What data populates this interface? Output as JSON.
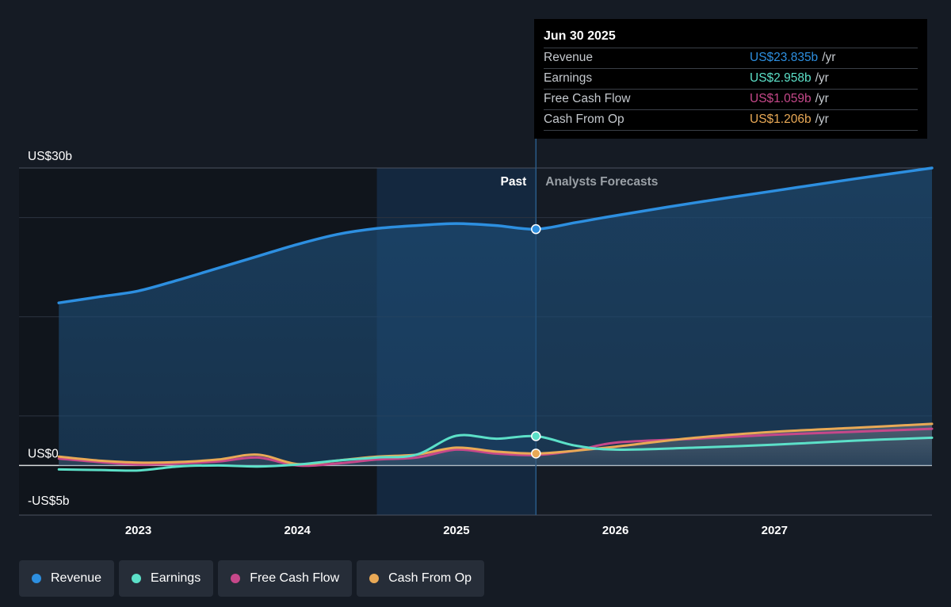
{
  "tooltip": {
    "date": "Jun 30 2025",
    "rows": [
      {
        "label": "Revenue",
        "value": "US$23.835b",
        "unit": "/yr",
        "color": "#2d8fe0"
      },
      {
        "label": "Earnings",
        "value": "US$2.958b",
        "unit": "/yr",
        "color": "#5ce0c8"
      },
      {
        "label": "Free Cash Flow",
        "value": "US$1.059b",
        "unit": "/yr",
        "color": "#c6488a"
      },
      {
        "label": "Cash From Op",
        "value": "US$1.206b",
        "unit": "/yr",
        "color": "#e9a956"
      }
    ]
  },
  "legend": [
    {
      "label": "Revenue",
      "color": "#2d8fe0"
    },
    {
      "label": "Earnings",
      "color": "#5ce0c8"
    },
    {
      "label": "Free Cash Flow",
      "color": "#c6488a"
    },
    {
      "label": "Cash From Op",
      "color": "#e9a956"
    }
  ],
  "chart_data": {
    "type": "line",
    "ylim": [
      -5,
      30
    ],
    "xlim": [
      2022.25,
      2027.99
    ],
    "y_tick_labels": [
      {
        "value": 30,
        "label": "US$30b"
      },
      {
        "value": 0,
        "label": "US$0"
      },
      {
        "value": -5,
        "label": "-US$5b"
      }
    ],
    "x_tick_labels": [
      {
        "value": 2023,
        "label": "2023"
      },
      {
        "value": 2024,
        "label": "2024"
      },
      {
        "value": 2025,
        "label": "2025"
      },
      {
        "value": 2026,
        "label": "2026"
      },
      {
        "value": 2027,
        "label": "2027"
      }
    ],
    "divider": {
      "x": 2025.5,
      "past_label": "Past",
      "forecast_label": "Analysts Forecasts"
    },
    "highlight_start": 2024.5,
    "grid": true,
    "series": [
      {
        "name": "Revenue",
        "color": "#2d8fe0",
        "points": [
          [
            2022.5,
            16.4
          ],
          [
            2022.75,
            17.0
          ],
          [
            2023.0,
            17.6
          ],
          [
            2023.25,
            18.7
          ],
          [
            2023.5,
            19.9
          ],
          [
            2023.75,
            21.1
          ],
          [
            2024.0,
            22.3
          ],
          [
            2024.25,
            23.3
          ],
          [
            2024.5,
            23.9
          ],
          [
            2024.75,
            24.2
          ],
          [
            2025.0,
            24.4
          ],
          [
            2025.25,
            24.2
          ],
          [
            2025.5,
            23.835
          ],
          [
            2025.75,
            24.5
          ],
          [
            2026.0,
            25.2
          ],
          [
            2026.5,
            26.5
          ],
          [
            2027.0,
            27.7
          ],
          [
            2027.5,
            28.9
          ],
          [
            2027.99,
            30.0
          ]
        ]
      },
      {
        "name": "Earnings",
        "color": "#5ce0c8",
        "points": [
          [
            2022.5,
            -0.4
          ],
          [
            2022.75,
            -0.45
          ],
          [
            2023.0,
            -0.5
          ],
          [
            2023.25,
            -0.1
          ],
          [
            2023.5,
            0.0
          ],
          [
            2023.75,
            -0.1
          ],
          [
            2024.0,
            0.1
          ],
          [
            2024.25,
            0.5
          ],
          [
            2024.5,
            0.8
          ],
          [
            2024.75,
            1.1
          ],
          [
            2025.0,
            3.0
          ],
          [
            2025.25,
            2.7
          ],
          [
            2025.5,
            2.958
          ],
          [
            2025.75,
            2.0
          ],
          [
            2026.0,
            1.6
          ],
          [
            2026.5,
            1.8
          ],
          [
            2027.0,
            2.1
          ],
          [
            2027.5,
            2.5
          ],
          [
            2027.99,
            2.8
          ]
        ]
      },
      {
        "name": "Free Cash Flow",
        "color": "#c6488a",
        "points": [
          [
            2022.5,
            0.7
          ],
          [
            2022.75,
            0.35
          ],
          [
            2023.0,
            0.1
          ],
          [
            2023.25,
            0.2
          ],
          [
            2023.5,
            0.4
          ],
          [
            2023.75,
            0.8
          ],
          [
            2024.0,
            0.0
          ],
          [
            2024.25,
            0.2
          ],
          [
            2024.5,
            0.6
          ],
          [
            2024.75,
            0.8
          ],
          [
            2025.0,
            1.6
          ],
          [
            2025.25,
            1.2
          ],
          [
            2025.5,
            1.059
          ],
          [
            2025.75,
            1.5
          ],
          [
            2026.0,
            2.3
          ],
          [
            2026.5,
            2.7
          ],
          [
            2027.0,
            3.1
          ],
          [
            2027.5,
            3.4
          ],
          [
            2027.99,
            3.7
          ]
        ]
      },
      {
        "name": "Cash From Op",
        "color": "#e9a956",
        "points": [
          [
            2022.5,
            0.9
          ],
          [
            2022.75,
            0.5
          ],
          [
            2023.0,
            0.3
          ],
          [
            2023.25,
            0.35
          ],
          [
            2023.5,
            0.6
          ],
          [
            2023.75,
            1.1
          ],
          [
            2024.0,
            0.15
          ],
          [
            2024.25,
            0.5
          ],
          [
            2024.5,
            0.9
          ],
          [
            2024.75,
            1.1
          ],
          [
            2025.0,
            1.8
          ],
          [
            2025.25,
            1.4
          ],
          [
            2025.5,
            1.206
          ],
          [
            2025.75,
            1.5
          ],
          [
            2026.0,
            1.9
          ],
          [
            2026.5,
            2.8
          ],
          [
            2027.0,
            3.4
          ],
          [
            2027.5,
            3.8
          ],
          [
            2027.99,
            4.2
          ]
        ]
      }
    ]
  }
}
